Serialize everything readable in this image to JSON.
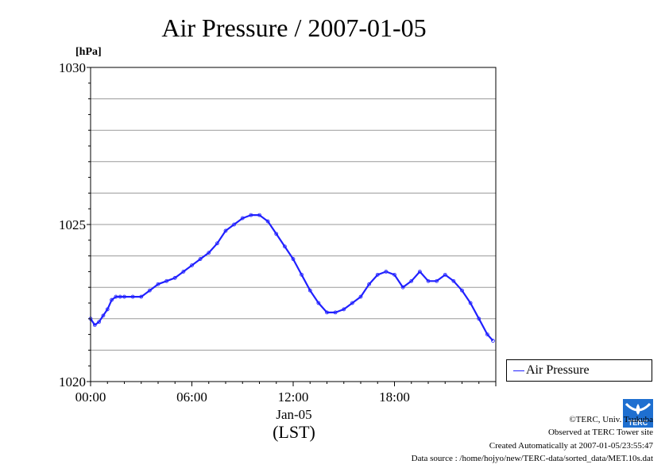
{
  "chart_data": {
    "type": "line",
    "title": "Air Pressure / 2007-01-05",
    "unit_label": "[hPa]",
    "ylim": [
      1020,
      1030
    ],
    "y_ticks": [
      1020,
      1025,
      1030
    ],
    "y_minor_gridlines_every": 1,
    "grid": true,
    "xlim": [
      "00:00",
      "24:00"
    ],
    "x_ticks": [
      "00:00",
      "06:00",
      "12:00",
      "18:00"
    ],
    "x_date_label": "Jan-05",
    "xlabel": "(LST)",
    "legend_position": "right",
    "series": [
      {
        "name": "Air Pressure",
        "color": "#2020ff",
        "x": [
          "00:00",
          "00:15",
          "00:30",
          "00:45",
          "01:00",
          "01:15",
          "01:30",
          "01:45",
          "02:00",
          "02:30",
          "03:00",
          "03:30",
          "04:00",
          "04:30",
          "05:00",
          "05:30",
          "06:00",
          "06:30",
          "07:00",
          "07:30",
          "08:00",
          "08:30",
          "09:00",
          "09:30",
          "10:00",
          "10:30",
          "11:00",
          "11:30",
          "12:00",
          "12:30",
          "13:00",
          "13:30",
          "14:00",
          "14:30",
          "15:00",
          "15:30",
          "16:00",
          "16:30",
          "17:00",
          "17:30",
          "18:00",
          "18:30",
          "19:00",
          "19:30",
          "20:00",
          "20:30",
          "21:00",
          "21:30",
          "22:00",
          "22:30",
          "23:00",
          "23:30",
          "23:50"
        ],
        "y": [
          1022.0,
          1021.8,
          1021.9,
          1022.1,
          1022.3,
          1022.6,
          1022.7,
          1022.7,
          1022.7,
          1022.7,
          1022.7,
          1022.9,
          1023.1,
          1023.2,
          1023.3,
          1023.5,
          1023.7,
          1023.9,
          1024.1,
          1024.4,
          1024.8,
          1025.0,
          1025.2,
          1025.3,
          1025.3,
          1025.1,
          1024.7,
          1024.3,
          1023.9,
          1023.4,
          1022.9,
          1022.5,
          1022.2,
          1022.2,
          1022.3,
          1022.5,
          1022.7,
          1023.1,
          1023.4,
          1023.5,
          1023.4,
          1023.0,
          1023.2,
          1023.5,
          1023.2,
          1023.2,
          1023.4,
          1023.2,
          1022.9,
          1022.5,
          1022.0,
          1021.5,
          1021.3
        ]
      }
    ]
  },
  "credits": {
    "copyright": "©TERC, Univ. Tsukuba",
    "observed": "Observed at TERC Tower site",
    "created": "Created Automatically at 2007-01-05/23:55:47",
    "source": "Data source : /home/hojyo/new/TERC-data/sorted_data/MET.10s.dat",
    "logo_text": "TERC"
  }
}
